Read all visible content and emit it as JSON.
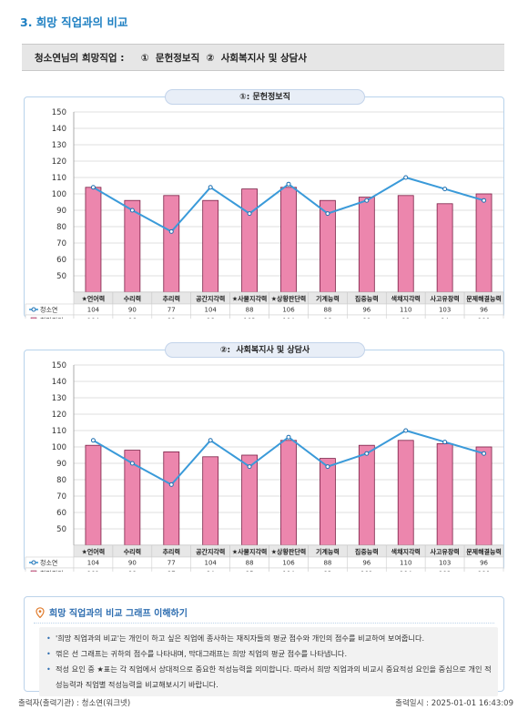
{
  "page": {
    "title": "3. 희망 직업과의 비교",
    "job_line": "청소연님의 희망직업 :     ①  문헌정보직  ②  사회복지사 및 상담사"
  },
  "colors": {
    "bar": "#ec86ad",
    "bar_stroke": "#7a1f45",
    "line": "#3a9ad9",
    "grid": "#d5d5d5",
    "accent": "#1d7fc2"
  },
  "chart_data": [
    {
      "type": "bar",
      "title": "①: 문헌정보직",
      "categories": [
        "★언어력",
        "수리력",
        "추리력",
        "공간지각력",
        "★사물지각력",
        "★상황판단력",
        "기계능력",
        "집중능력",
        "색채지각력",
        "사고유창력",
        "문제해결능력"
      ],
      "ylim": [
        40,
        150
      ],
      "yticks": [
        50,
        60,
        70,
        80,
        90,
        100,
        110,
        120,
        130,
        140,
        150
      ],
      "series": [
        {
          "name": "청소연",
          "kind": "line",
          "values": [
            104,
            90,
            77,
            104,
            88,
            106,
            88,
            96,
            110,
            103,
            96
          ]
        },
        {
          "name": "희망직업",
          "kind": "bar",
          "values": [
            104,
            96,
            99,
            96,
            103,
            104,
            96,
            98,
            99,
            94,
            100
          ]
        }
      ]
    },
    {
      "type": "bar",
      "title": "②:  사회복지사 및 상담사",
      "categories": [
        "★언어력",
        "수리력",
        "추리력",
        "공간지각력",
        "★사물지각력",
        "★상황판단력",
        "기계능력",
        "집중능력",
        "색채지각력",
        "사고유창력",
        "문제해결능력"
      ],
      "ylim": [
        40,
        150
      ],
      "yticks": [
        50,
        60,
        70,
        80,
        90,
        100,
        110,
        120,
        130,
        140,
        150
      ],
      "series": [
        {
          "name": "청소연",
          "kind": "line",
          "values": [
            104,
            90,
            77,
            104,
            88,
            106,
            88,
            96,
            110,
            103,
            96
          ]
        },
        {
          "name": "희망직업",
          "kind": "bar",
          "values": [
            101,
            98,
            97,
            94,
            95,
            104,
            93,
            101,
            104,
            102,
            100
          ]
        }
      ]
    }
  ],
  "info": {
    "heading": "희망 직업과의 비교 그래프 이해하기",
    "items": [
      "'희망 직업과의 비교'는 개인이 하고 싶은 직업에 종사하는 재직자들의 평균 점수와 개인의 점수를 비교하여 보여줍니다.",
      "꺾은 선 그래프는 귀하의 점수를 나타내며, 막대그래프는 희망 직업의 평균 점수를 나타냅니다.",
      "적성 요인 중 ★표는 각 직업에서 상대적으로 중요한 적성능력을 의미합니다. 따라서 희망 직업과의 비교시 중요적성 요인을 중심으로 개인 적성능력과 직업별 적성능력을 비교해보시기 바랍니다."
    ]
  },
  "footer": {
    "left": "출력자(출력기관) : 청소연(워크넷)",
    "right": "출력일시 : 2025-01-01 16:43:09"
  }
}
